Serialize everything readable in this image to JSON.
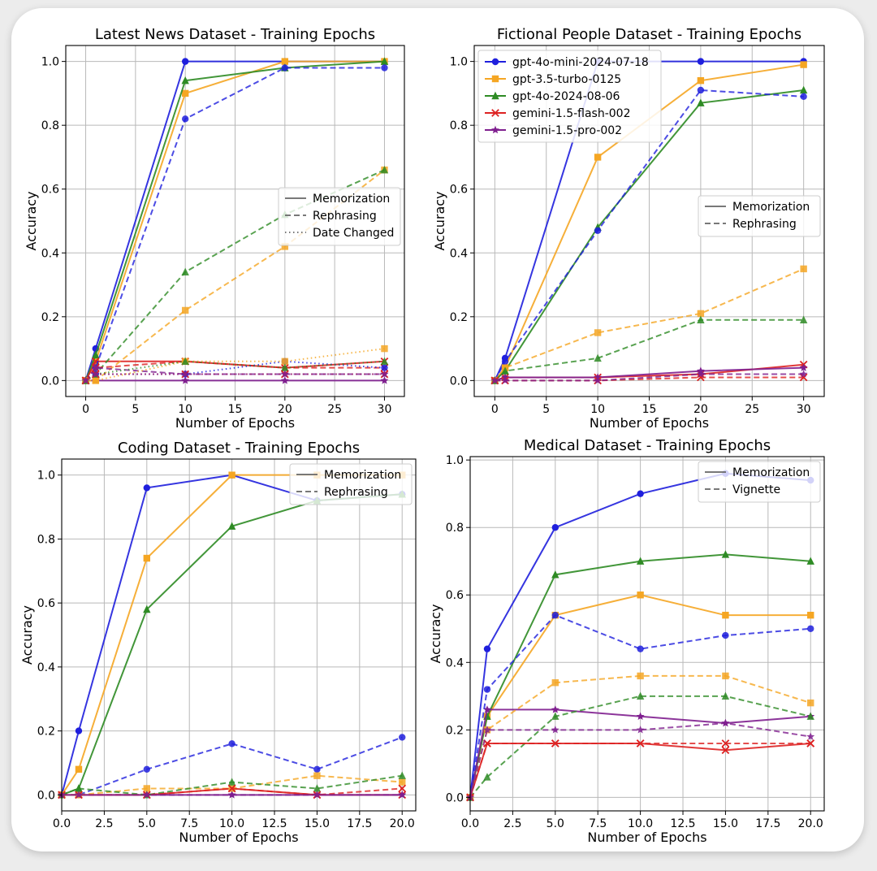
{
  "colors": {
    "gpt-4o-mini-2024-07-18": "#1f1fdd",
    "gpt-3.5-turbo-0125": "#f5a623",
    "gpt-4o-2024-08-06": "#2e8b24",
    "gemini-1.5-flash-002": "#dd2222",
    "gemini-1.5-pro-002": "#7f1f8f",
    "style_gray": "#666666"
  },
  "model_legend": [
    "gpt-4o-mini-2024-07-18",
    "gpt-3.5-turbo-0125",
    "gpt-4o-2024-08-06",
    "gemini-1.5-flash-002",
    "gemini-1.5-pro-002"
  ],
  "chart_data": [
    {
      "type": "line",
      "title": "Latest News Dataset - Training Epochs",
      "xlabel": "Number of Epochs",
      "ylabel": "Accuracy",
      "xlim": [
        -2,
        32
      ],
      "ylim": [
        -0.05,
        1.05
      ],
      "xticks": [
        0,
        5,
        10,
        15,
        20,
        25,
        30
      ],
      "xtick_labels": [
        "0",
        "5",
        "10",
        "15",
        "20",
        "25",
        "30"
      ],
      "yticks": [
        0.0,
        0.2,
        0.4,
        0.6,
        0.8,
        1.0
      ],
      "ytick_labels": [
        "0.0",
        "0.2",
        "0.4",
        "0.6",
        "0.8",
        "1.0"
      ],
      "grid": true,
      "style_legend": {
        "position": "center-right",
        "entries": [
          {
            "label": "Memorization",
            "dash": "solid"
          },
          {
            "label": "Rephrasing",
            "dash": "dashed"
          },
          {
            "label": "Date Changed",
            "dash": "dotted"
          }
        ]
      },
      "x": [
        0,
        1,
        10,
        20,
        30
      ],
      "series": [
        {
          "model": "gpt-4o-mini-2024-07-18",
          "variant": "Memorization",
          "values": [
            0,
            0.1,
            1.0,
            1.0,
            1.0
          ]
        },
        {
          "model": "gpt-3.5-turbo-0125",
          "variant": "Memorization",
          "values": [
            0,
            0.06,
            0.9,
            1.0,
            1.0
          ]
        },
        {
          "model": "gpt-4o-2024-08-06",
          "variant": "Memorization",
          "values": [
            0,
            0.08,
            0.94,
            0.98,
            1.0
          ]
        },
        {
          "model": "gemini-1.5-flash-002",
          "variant": "Memorization",
          "values": [
            0,
            0.06,
            0.06,
            0.04,
            0.06
          ]
        },
        {
          "model": "gemini-1.5-pro-002",
          "variant": "Memorization",
          "values": [
            0,
            0.0,
            0.0,
            0.0,
            0.0
          ]
        },
        {
          "model": "gpt-4o-mini-2024-07-18",
          "variant": "Rephrasing",
          "values": [
            0,
            0.04,
            0.82,
            0.98,
            0.98
          ]
        },
        {
          "model": "gpt-3.5-turbo-0125",
          "variant": "Rephrasing",
          "values": [
            0,
            0.0,
            0.22,
            0.42,
            0.66
          ]
        },
        {
          "model": "gpt-4o-2024-08-06",
          "variant": "Rephrasing",
          "values": [
            0,
            0.02,
            0.34,
            0.52,
            0.66
          ]
        },
        {
          "model": "gemini-1.5-flash-002",
          "variant": "Rephrasing",
          "values": [
            0,
            0.04,
            0.06,
            0.04,
            0.04
          ]
        },
        {
          "model": "gemini-1.5-pro-002",
          "variant": "Rephrasing",
          "values": [
            0,
            0.04,
            0.02,
            0.02,
            0.02
          ]
        },
        {
          "model": "gpt-4o-mini-2024-07-18",
          "variant": "Date Changed",
          "values": [
            0,
            0.02,
            0.02,
            0.06,
            0.04
          ]
        },
        {
          "model": "gpt-3.5-turbo-0125",
          "variant": "Date Changed",
          "values": [
            0,
            0.0,
            0.06,
            0.06,
            0.1
          ]
        },
        {
          "model": "gpt-4o-2024-08-06",
          "variant": "Date Changed",
          "values": [
            0,
            0.02,
            0.06,
            0.04,
            0.06
          ]
        },
        {
          "model": "gemini-1.5-flash-002",
          "variant": "Date Changed",
          "values": [
            0,
            0.02,
            0.02,
            0.02,
            0.02
          ]
        },
        {
          "model": "gemini-1.5-pro-002",
          "variant": "Date Changed",
          "values": [
            0,
            0.02,
            0.02,
            0.02,
            0.02
          ]
        }
      ]
    },
    {
      "type": "line",
      "title": "Fictional People Dataset - Training Epochs",
      "xlabel": "Number of Epochs",
      "ylabel": "Accuracy",
      "xlim": [
        -2,
        32
      ],
      "ylim": [
        -0.05,
        1.05
      ],
      "xticks": [
        0,
        5,
        10,
        15,
        20,
        25,
        30
      ],
      "xtick_labels": [
        "0",
        "5",
        "10",
        "15",
        "20",
        "25",
        "30"
      ],
      "yticks": [
        0.0,
        0.2,
        0.4,
        0.6,
        0.8,
        1.0
      ],
      "ytick_labels": [
        "0.0",
        "0.2",
        "0.4",
        "0.6",
        "0.8",
        "1.0"
      ],
      "grid": true,
      "model_legend_position": "top-left",
      "style_legend": {
        "position": "center-right",
        "entries": [
          {
            "label": "Memorization",
            "dash": "solid"
          },
          {
            "label": "Rephrasing",
            "dash": "dashed"
          }
        ]
      },
      "x": [
        0,
        1,
        10,
        20,
        30
      ],
      "series": [
        {
          "model": "gpt-4o-mini-2024-07-18",
          "variant": "Memorization",
          "values": [
            0,
            0.07,
            1.0,
            1.0,
            1.0
          ]
        },
        {
          "model": "gpt-3.5-turbo-0125",
          "variant": "Memorization",
          "values": [
            0,
            0.04,
            0.7,
            0.94,
            0.99
          ]
        },
        {
          "model": "gpt-4o-2024-08-06",
          "variant": "Memorization",
          "values": [
            0,
            0.03,
            0.48,
            0.87,
            0.91
          ]
        },
        {
          "model": "gemini-1.5-flash-002",
          "variant": "Memorization",
          "values": [
            0,
            0.01,
            0.01,
            0.02,
            0.05
          ]
        },
        {
          "model": "gemini-1.5-pro-002",
          "variant": "Memorization",
          "values": [
            0,
            0.01,
            0.01,
            0.03,
            0.04
          ]
        },
        {
          "model": "gpt-4o-mini-2024-07-18",
          "variant": "Rephrasing",
          "values": [
            0,
            0.06,
            0.47,
            0.91,
            0.89
          ]
        },
        {
          "model": "gpt-3.5-turbo-0125",
          "variant": "Rephrasing",
          "values": [
            0,
            0.04,
            0.15,
            0.21,
            0.35
          ]
        },
        {
          "model": "gpt-4o-2024-08-06",
          "variant": "Rephrasing",
          "values": [
            0,
            0.03,
            0.07,
            0.19,
            0.19
          ]
        },
        {
          "model": "gemini-1.5-flash-002",
          "variant": "Rephrasing",
          "values": [
            0,
            0.0,
            0.0,
            0.01,
            0.01
          ]
        },
        {
          "model": "gemini-1.5-pro-002",
          "variant": "Rephrasing",
          "values": [
            0,
            0.0,
            0.0,
            0.02,
            0.02
          ]
        }
      ]
    },
    {
      "type": "line",
      "title": "Coding Dataset - Training Epochs",
      "xlabel": "Number of Epochs",
      "ylabel": "Accuracy",
      "xlim": [
        0,
        20.8
      ],
      "ylim": [
        -0.05,
        1.05
      ],
      "xticks": [
        0,
        2.5,
        5,
        7.5,
        10,
        12.5,
        15,
        17.5,
        20
      ],
      "xtick_labels": [
        "0.0",
        "2.5",
        "5.0",
        "7.5",
        "10.0",
        "12.5",
        "15.0",
        "17.5",
        "20.0"
      ],
      "yticks": [
        0.0,
        0.2,
        0.4,
        0.6,
        0.8,
        1.0
      ],
      "ytick_labels": [
        "0.0",
        "0.2",
        "0.4",
        "0.6",
        "0.8",
        "1.0"
      ],
      "grid": true,
      "style_legend": {
        "position": "top-right",
        "entries": [
          {
            "label": "Memorization",
            "dash": "solid"
          },
          {
            "label": "Rephrasing",
            "dash": "dashed"
          }
        ]
      },
      "x": [
        0,
        1,
        5,
        10,
        15,
        20
      ],
      "series": [
        {
          "model": "gpt-4o-mini-2024-07-18",
          "variant": "Memorization",
          "values": [
            0,
            0.2,
            0.96,
            1.0,
            0.92,
            0.94
          ]
        },
        {
          "model": "gpt-3.5-turbo-0125",
          "variant": "Memorization",
          "values": [
            0,
            0.08,
            0.74,
            1.0,
            1.0,
            1.0
          ]
        },
        {
          "model": "gpt-4o-2024-08-06",
          "variant": "Memorization",
          "values": [
            0,
            0.02,
            0.58,
            0.84,
            0.92,
            0.94
          ]
        },
        {
          "model": "gemini-1.5-flash-002",
          "variant": "Memorization",
          "values": [
            0,
            0.0,
            0.0,
            0.02,
            0.0,
            0.0
          ]
        },
        {
          "model": "gemini-1.5-pro-002",
          "variant": "Memorization",
          "values": [
            0,
            0.0,
            0.0,
            0.0,
            0.0,
            0.0
          ]
        },
        {
          "model": "gpt-4o-mini-2024-07-18",
          "variant": "Rephrasing",
          "values": [
            0,
            0.0,
            0.08,
            0.16,
            0.08,
            0.18
          ]
        },
        {
          "model": "gpt-3.5-turbo-0125",
          "variant": "Rephrasing",
          "values": [
            0,
            0.0,
            0.02,
            0.02,
            0.06,
            0.04
          ]
        },
        {
          "model": "gpt-4o-2024-08-06",
          "variant": "Rephrasing",
          "values": [
            0,
            0.02,
            0.0,
            0.04,
            0.02,
            0.06
          ]
        },
        {
          "model": "gemini-1.5-flash-002",
          "variant": "Rephrasing",
          "values": [
            0,
            0.0,
            0.0,
            0.02,
            0.0,
            0.02
          ]
        },
        {
          "model": "gemini-1.5-pro-002",
          "variant": "Rephrasing",
          "values": [
            0,
            0.0,
            0.0,
            0.0,
            0.0,
            0.0
          ]
        }
      ]
    },
    {
      "type": "line",
      "title": "Medical Dataset - Training Epochs",
      "xlabel": "Number of Epochs",
      "ylabel": "Accuracy",
      "xlim": [
        0,
        20.8
      ],
      "ylim": [
        -0.04,
        1.01
      ],
      "xticks": [
        0,
        2.5,
        5,
        7.5,
        10,
        12.5,
        15,
        17.5,
        20
      ],
      "xtick_labels": [
        "0.0",
        "2.5",
        "5.0",
        "7.5",
        "10.0",
        "12.5",
        "15.0",
        "17.5",
        "20.0"
      ],
      "yticks": [
        0.0,
        0.2,
        0.4,
        0.6,
        0.8,
        1.0
      ],
      "ytick_labels": [
        "0.0",
        "0.2",
        "0.4",
        "0.6",
        "0.8",
        "1.0"
      ],
      "grid": true,
      "style_legend": {
        "position": "top-right",
        "entries": [
          {
            "label": "Memorization",
            "dash": "solid"
          },
          {
            "label": "Vignette",
            "dash": "dashed"
          }
        ]
      },
      "x": [
        0,
        1,
        5,
        10,
        15,
        20
      ],
      "series": [
        {
          "model": "gpt-4o-mini-2024-07-18",
          "variant": "Memorization",
          "values": [
            0,
            0.44,
            0.8,
            0.9,
            0.96,
            0.94
          ]
        },
        {
          "model": "gpt-3.5-turbo-0125",
          "variant": "Memorization",
          "values": [
            0,
            0.24,
            0.54,
            0.6,
            0.54,
            0.54
          ]
        },
        {
          "model": "gpt-4o-2024-08-06",
          "variant": "Memorization",
          "values": [
            0,
            0.24,
            0.66,
            0.7,
            0.72,
            0.7
          ]
        },
        {
          "model": "gemini-1.5-flash-002",
          "variant": "Memorization",
          "values": [
            0,
            0.16,
            0.16,
            0.16,
            0.14,
            0.16
          ]
        },
        {
          "model": "gemini-1.5-pro-002",
          "variant": "Memorization",
          "values": [
            0,
            0.26,
            0.26,
            0.24,
            0.22,
            0.24
          ]
        },
        {
          "model": "gpt-4o-mini-2024-07-18",
          "variant": "Vignette",
          "values": [
            0,
            0.32,
            0.54,
            0.44,
            0.48,
            0.5
          ]
        },
        {
          "model": "gpt-3.5-turbo-0125",
          "variant": "Vignette",
          "values": [
            0,
            0.2,
            0.34,
            0.36,
            0.36,
            0.28
          ]
        },
        {
          "model": "gpt-4o-2024-08-06",
          "variant": "Vignette",
          "values": [
            0,
            0.06,
            0.24,
            0.3,
            0.3,
            0.24
          ]
        },
        {
          "model": "gemini-1.5-flash-002",
          "variant": "Vignette",
          "values": [
            0,
            0.16,
            0.16,
            0.16,
            0.16,
            0.16
          ]
        },
        {
          "model": "gemini-1.5-pro-002",
          "variant": "Vignette",
          "values": [
            0,
            0.2,
            0.2,
            0.2,
            0.22,
            0.18
          ]
        }
      ]
    }
  ]
}
